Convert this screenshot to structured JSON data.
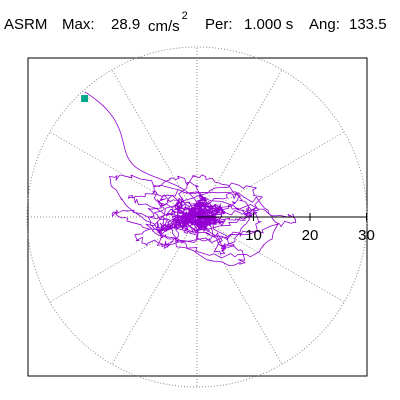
{
  "header": {
    "code": "ASRM",
    "max_label": "Max:",
    "max_value": "28.9",
    "max_unit": "cm/s",
    "max_exponent": "2",
    "period_label": "Per:",
    "period_value": "1.000 s",
    "angle_label": "Ang:",
    "angle_value": "133.5"
  },
  "chart_data": {
    "type": "scatter",
    "subtype": "polar-orbit",
    "radial_ticks": [
      10,
      20,
      30
    ],
    "radial_tick_labels": [
      "10",
      "20",
      "30"
    ],
    "rmax": 30,
    "grid": true,
    "angular_grid_deg": 30,
    "peak": {
      "r": 28.9,
      "angle_deg": 133.5
    },
    "colors": {
      "trace": "#9400d3",
      "marker": "#00a68c",
      "grid": "#888888",
      "frame": "#000000"
    }
  }
}
